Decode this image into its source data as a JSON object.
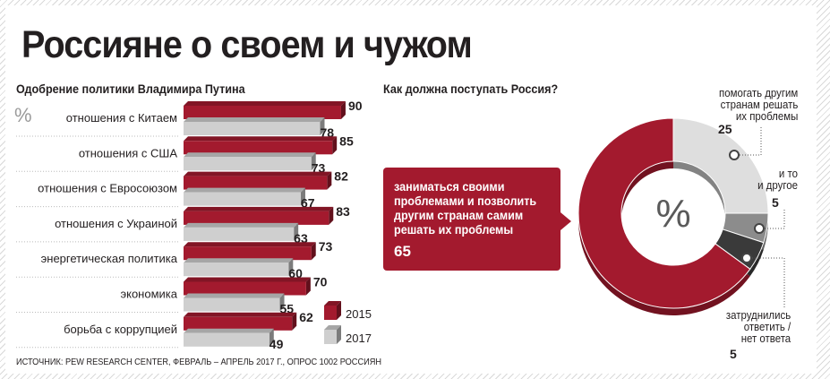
{
  "title": "Россияне о своем и чужом",
  "left_subtitle": "Одобрение политики Владимира Путина",
  "left_unit": "%",
  "right_subtitle": "Как должна поступать Россия?",
  "source": "ИСТОЧНИК: PEW RESEARCH CENTER, ФЕВРАЛЬ – АПРЕЛЬ 2017 Г., ОПРОС 1002 РОССИЯН",
  "colors": {
    "y2015": "#a31a2e",
    "y2017": "#cfcfcf",
    "dark": "#3a3a3a",
    "mid": "#8c8c8c"
  },
  "chart_data": [
    {
      "type": "bar",
      "categories": [
        "отношения с Китаем",
        "отношения с США",
        "отношения с Евросоюзом",
        "отношения с Украиной",
        "энергетическая политика",
        "экономика",
        "борьба с коррупцией"
      ],
      "series": [
        {
          "name": "2015",
          "values": [
            90,
            85,
            82,
            83,
            73,
            70,
            62
          ]
        },
        {
          "name": "2017",
          "values": [
            78,
            73,
            67,
            63,
            60,
            55,
            49
          ]
        }
      ],
      "legend": [
        "2015",
        "2017"
      ],
      "legend_position": "bottom-right",
      "orientation": "horizontal"
    },
    {
      "type": "pie",
      "center_label": "%",
      "slices": [
        {
          "label": "заниматься своими проблемами и позволить другим странам самим решать их проблемы",
          "value": 65
        },
        {
          "label": "помогать другим странам решать их проблемы",
          "value": 25
        },
        {
          "label": "и то и другое",
          "value": 5
        },
        {
          "label": "затруднились ответить / нет ответа",
          "value": 5
        }
      ]
    }
  ],
  "donut_labels": {
    "help": [
      "помогать другим",
      "странам решать",
      "их проблемы"
    ],
    "both": [
      "и то",
      "и другое"
    ],
    "unsure": [
      "затруднились",
      "ответить /",
      "нет ответа"
    ]
  }
}
